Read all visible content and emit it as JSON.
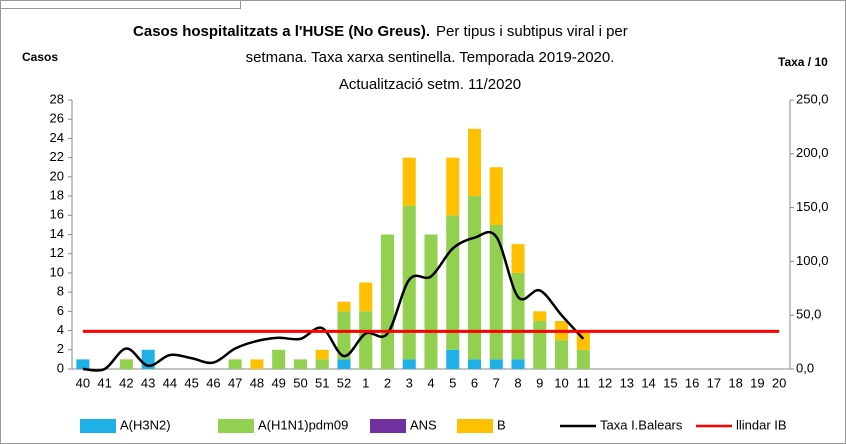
{
  "chart_data": {
    "type": "bar",
    "title": "Casos hospitalitzats a l'HUSE (No Greus).",
    "subtitle": [
      "Per tipus i subtipus viral i per",
      "setmana. Taxa xarxa sentinella.  Temporada 2019-2020.",
      "Actualització  setm. 11/2020"
    ],
    "ylabel": "Casos",
    "y2label": "Taxa / 10",
    "categories": [
      "40",
      "41",
      "42",
      "43",
      "44",
      "45",
      "46",
      "47",
      "48",
      "49",
      "50",
      "51",
      "52",
      "1",
      "2",
      "3",
      "4",
      "5",
      "6",
      "7",
      "8",
      "9",
      "10",
      "11",
      "12",
      "13",
      "14",
      "15",
      "16",
      "17",
      "18",
      "19",
      "20"
    ],
    "stacked": true,
    "series": [
      {
        "name": "A(H3N2)",
        "color": "#1fb0e8",
        "values": [
          1,
          0,
          0,
          2,
          0,
          0,
          0,
          0,
          0,
          0,
          0,
          0,
          1,
          0,
          0,
          1,
          0,
          2,
          1,
          1,
          1,
          0,
          0,
          0,
          0,
          0,
          0,
          0,
          0,
          0,
          0,
          0,
          0
        ]
      },
      {
        "name": "A(H1N1)pdm09",
        "color": "#92d050",
        "values": [
          0,
          0,
          1,
          0,
          0,
          0,
          0,
          1,
          0,
          2,
          1,
          1,
          5,
          6,
          14,
          16,
          14,
          14,
          17,
          14,
          9,
          5,
          3,
          2,
          0,
          0,
          0,
          0,
          0,
          0,
          0,
          0,
          0
        ]
      },
      {
        "name": "ANS",
        "color": "#7030a0",
        "values": [
          0,
          0,
          0,
          0,
          0,
          0,
          0,
          0,
          0,
          0,
          0,
          0,
          0,
          0,
          0,
          0,
          0,
          0,
          0,
          0,
          0,
          0,
          0,
          0,
          0,
          0,
          0,
          0,
          0,
          0,
          0,
          0,
          0
        ]
      },
      {
        "name": "B",
        "color": "#ffc000",
        "values": [
          0,
          0,
          0,
          0,
          0,
          0,
          0,
          0,
          1,
          0,
          0,
          1,
          1,
          3,
          0,
          5,
          0,
          6,
          7,
          6,
          3,
          1,
          2,
          2,
          0,
          0,
          0,
          0,
          0,
          0,
          0,
          0,
          0
        ]
      },
      {
        "name": "Taxa I.Balears",
        "type": "line",
        "axis": "y2",
        "color": "#000000",
        "values": [
          0,
          0,
          19,
          3,
          13,
          10,
          6,
          19,
          26,
          29,
          28,
          38,
          12,
          33,
          33,
          83,
          86,
          112,
          122,
          123,
          67,
          73,
          50,
          28,
          null,
          null,
          null,
          null,
          null,
          null,
          null,
          null,
          null
        ]
      },
      {
        "name": "llindar IB",
        "type": "line",
        "axis": "y2",
        "color": "#ff0000",
        "values": [
          35,
          35,
          35,
          35,
          35,
          35,
          35,
          35,
          35,
          35,
          35,
          35,
          35,
          35,
          35,
          35,
          35,
          35,
          35,
          35,
          35,
          35,
          35,
          35,
          35,
          35,
          35,
          35,
          35,
          35,
          35,
          35,
          35
        ]
      }
    ],
    "ylim": [
      0,
      28
    ],
    "yticks": [
      0,
      2,
      4,
      6,
      8,
      10,
      12,
      14,
      16,
      18,
      20,
      22,
      24,
      26,
      28
    ],
    "y2lim": [
      0,
      250
    ],
    "y2ticks": [
      {
        "value": 0,
        "label": "0,0"
      },
      {
        "value": 50,
        "label": "50,0"
      },
      {
        "value": 100,
        "label": "100,0"
      },
      {
        "value": 150,
        "label": "150,0"
      },
      {
        "value": 200,
        "label": "200,0"
      },
      {
        "value": 250,
        "label": "250,0"
      }
    ],
    "legend": "bottom"
  }
}
